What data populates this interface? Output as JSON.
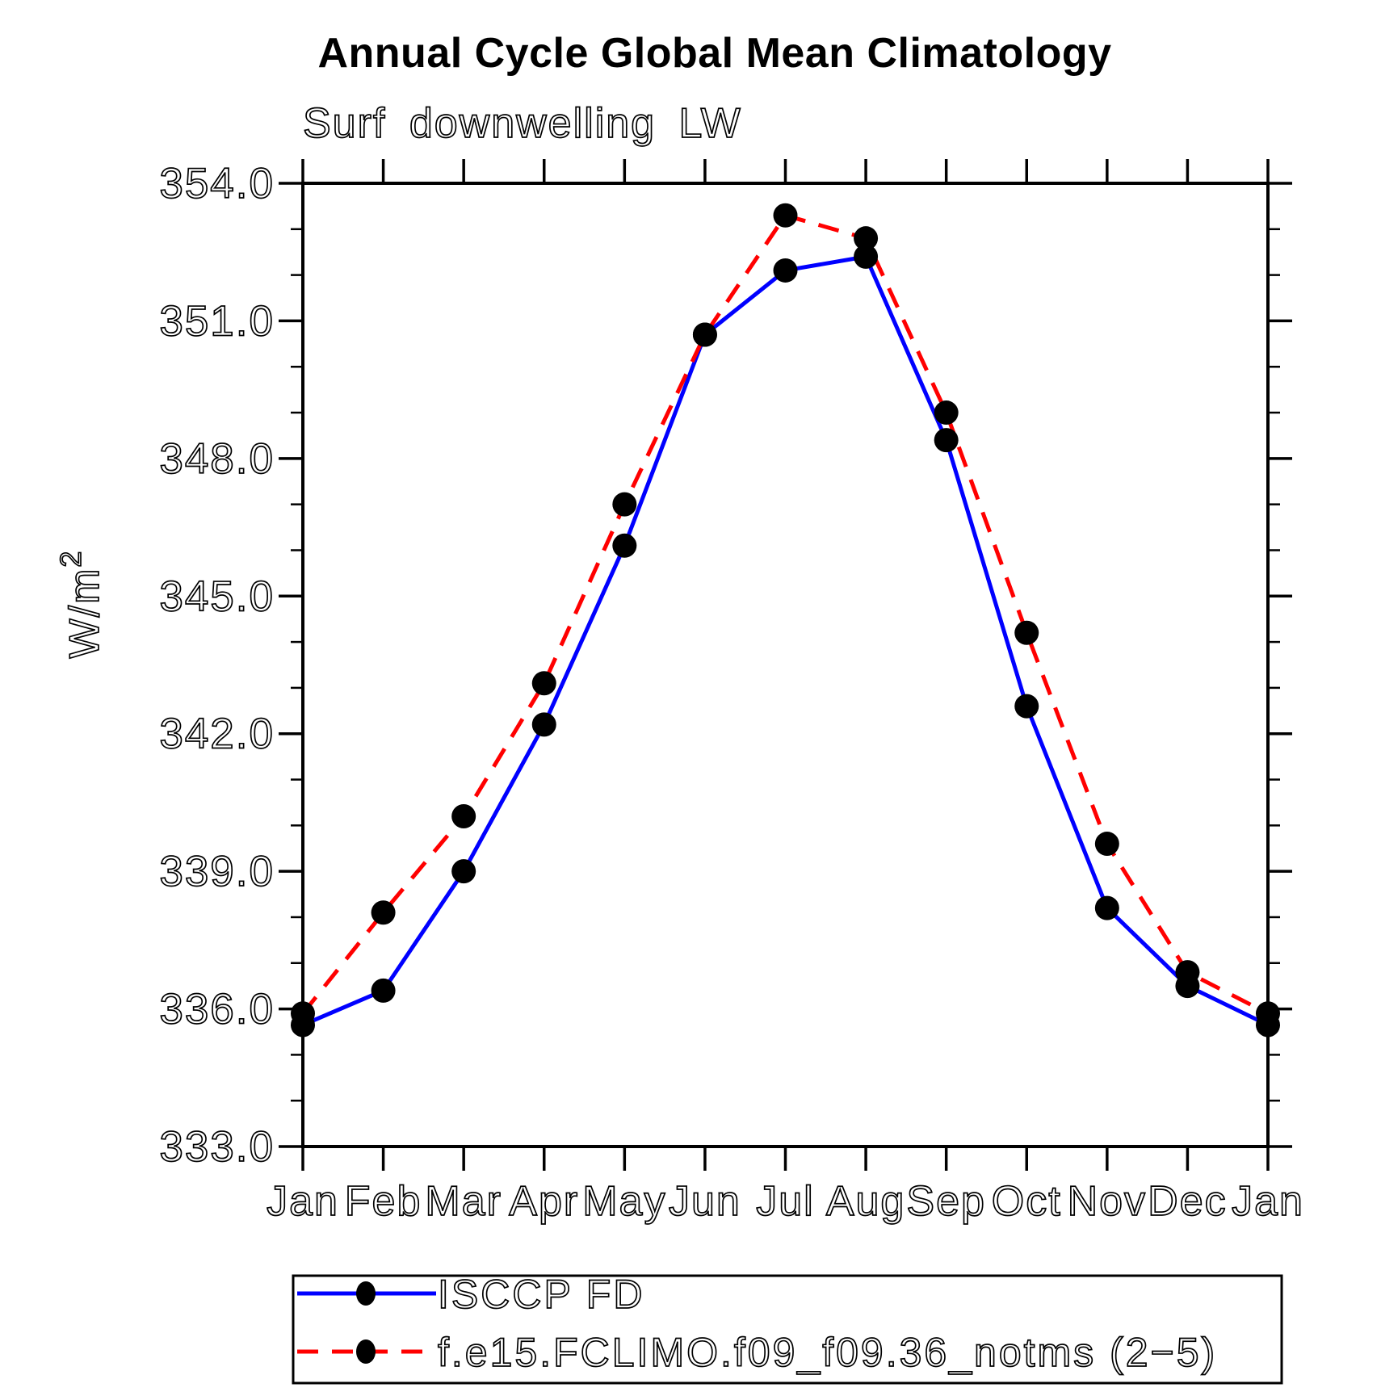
{
  "header": {
    "title": "Annual Cycle Global Mean Climatology",
    "subtitle": "Surf downwelling LW"
  },
  "chart_data": {
    "type": "line",
    "title": "Annual Cycle Global Mean Climatology",
    "subtitle": "Surf downwelling LW",
    "ylabel": "W/m",
    "ylabel_sup": "2",
    "x_tick_labels": [
      "Jan",
      "Feb",
      "Mar",
      "Apr",
      "May",
      "Jun",
      "Jul",
      "Aug",
      "Sep",
      "Oct",
      "Nov",
      "Dec",
      "Jan"
    ],
    "ylim": [
      333.0,
      354.0
    ],
    "y_major_ticks": [
      333.0,
      336.0,
      339.0,
      342.0,
      345.0,
      348.0,
      351.0,
      354.0
    ],
    "y_major_tick_labels": [
      "333.0",
      "336.0",
      "339.0",
      "342.0",
      "345.0",
      "348.0",
      "351.0",
      "354.0"
    ],
    "y_minor_step": 1.0,
    "grid": false,
    "legend_position": "bottom",
    "axis_color": "#000000",
    "marker_shape": "filled-circle",
    "series": [
      {
        "name": "ISCCP FD",
        "color": "#0000ff",
        "style": "solid",
        "marker_color": "#000000",
        "values": [
          335.65,
          336.4,
          339.0,
          342.2,
          346.1,
          350.7,
          352.1,
          352.4,
          348.4,
          342.6,
          338.2,
          336.5,
          335.65
        ]
      },
      {
        "name": "f.e15.FCLIMO.f09_f09.36_notms (2−5)",
        "color": "#ff0000",
        "style": "dashed",
        "marker_color": "#000000",
        "values": [
          335.9,
          338.1,
          340.2,
          343.1,
          347.0,
          350.7,
          353.3,
          352.8,
          349.0,
          344.2,
          339.6,
          336.8,
          335.9
        ]
      }
    ]
  }
}
